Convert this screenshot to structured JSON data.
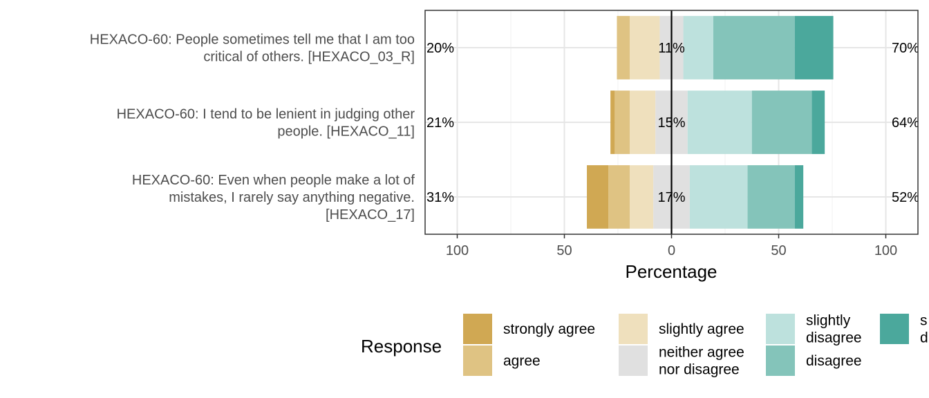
{
  "chart_data": {
    "type": "bar",
    "orientation": "horizontal",
    "stacked": "diverging",
    "xlabel": "Percentage",
    "xlim": [
      -115,
      115
    ],
    "x_ticks": [
      -100,
      -50,
      0,
      50,
      100
    ],
    "x_tick_labels": [
      "100",
      "50",
      "0",
      "50",
      "100"
    ],
    "grid": true,
    "legend_title": "Response",
    "legend_position": "bottom",
    "levels": [
      {
        "name": "strongly agree",
        "color": "#D0A853"
      },
      {
        "name": "agree",
        "color": "#DFC383"
      },
      {
        "name": "slightly agree",
        "color": "#EFE0BD"
      },
      {
        "name": "neither agree nor disagree",
        "color": "#E0E0E0"
      },
      {
        "name": "slightly disagree",
        "color": "#BDE1DD"
      },
      {
        "name": "disagree",
        "color": "#84C4BA"
      },
      {
        "name": "strongly disagree",
        "color": "#4BA89C"
      }
    ],
    "legend_labels": [
      [
        "strongly agree"
      ],
      [
        "agree"
      ],
      [
        "slightly agree"
      ],
      [
        "neither agree",
        "nor disagree"
      ],
      [
        "slightly",
        "disagree"
      ],
      [
        "disagree"
      ],
      [
        "s",
        "d"
      ]
    ],
    "items": [
      {
        "label_lines": [
          "HEXACO-60: People sometimes tell me that I am too",
          "critical of others. [HEXACO_03_R]"
        ],
        "values": [
          0,
          6,
          14,
          11,
          14,
          38,
          18
        ],
        "left_pct": "20%",
        "center_pct": "11%",
        "right_pct": "70%"
      },
      {
        "label_lines": [
          "HEXACO-60: I tend to be lenient in judging other",
          "people. [HEXACO_11]"
        ],
        "values": [
          2,
          7,
          12,
          15,
          30,
          28,
          6
        ],
        "left_pct": "21%",
        "center_pct": "15%",
        "right_pct": "64%"
      },
      {
        "label_lines": [
          "HEXACO-60: Even when people make a lot of",
          "mistakes, I rarely say anything negative.",
          "[HEXACO_17]"
        ],
        "values": [
          10,
          10,
          11,
          17,
          27,
          22,
          4
        ],
        "left_pct": "31%",
        "center_pct": "17%",
        "right_pct": "52%"
      }
    ]
  }
}
